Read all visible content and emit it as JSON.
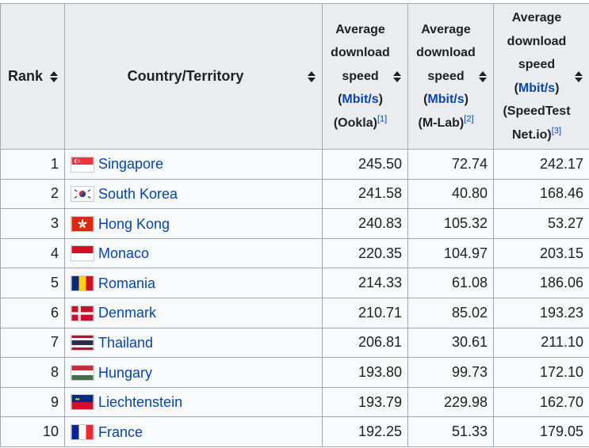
{
  "headers": {
    "rank": "Rank",
    "country": "Country/Territory",
    "ookla": {
      "l1": "Average",
      "l2": "download",
      "l3": "speed",
      "l4": "(Mbit/s)",
      "l5": "(Ookla)",
      "ref": "[1]"
    },
    "mlab": {
      "l1": "Average",
      "l2": "download",
      "l3": "speed",
      "l4": "(Mbit/s)",
      "l5": "(M-Lab)",
      "ref": "[2]"
    },
    "speedtest": {
      "l1": "Average",
      "l2": "download",
      "l3": "speed",
      "l4": "(Mbit/s)",
      "l5": "(SpeedTest",
      "l6": "Net.io)",
      "ref": "[3]"
    },
    "unit_link": "Mbit/s"
  },
  "rows": [
    {
      "rank": "1",
      "country": "Singapore",
      "flag": "singapore-flag-icon",
      "ookla": "245.50",
      "mlab": "72.74",
      "speedtest": "242.17"
    },
    {
      "rank": "2",
      "country": "South Korea",
      "flag": "south-korea-flag-icon",
      "ookla": "241.58",
      "mlab": "40.80",
      "speedtest": "168.46"
    },
    {
      "rank": "3",
      "country": "Hong Kong",
      "flag": "hong-kong-flag-icon",
      "ookla": "240.83",
      "mlab": "105.32",
      "speedtest": "53.27"
    },
    {
      "rank": "4",
      "country": "Monaco",
      "flag": "monaco-flag-icon",
      "ookla": "220.35",
      "mlab": "104.97",
      "speedtest": "203.15"
    },
    {
      "rank": "5",
      "country": "Romania",
      "flag": "romania-flag-icon",
      "ookla": "214.33",
      "mlab": "61.08",
      "speedtest": "186.06"
    },
    {
      "rank": "6",
      "country": "Denmark",
      "flag": "denmark-flag-icon",
      "ookla": "210.71",
      "mlab": "85.02",
      "speedtest": "193.23"
    },
    {
      "rank": "7",
      "country": "Thailand",
      "flag": "thailand-flag-icon",
      "ookla": "206.81",
      "mlab": "30.61",
      "speedtest": "211.10"
    },
    {
      "rank": "8",
      "country": "Hungary",
      "flag": "hungary-flag-icon",
      "ookla": "193.80",
      "mlab": "99.73",
      "speedtest": "172.10"
    },
    {
      "rank": "9",
      "country": "Liechtenstein",
      "flag": "liechtenstein-flag-icon",
      "ookla": "193.79",
      "mlab": "229.98",
      "speedtest": "162.70"
    },
    {
      "rank": "10",
      "country": "France",
      "flag": "france-flag-icon",
      "ookla": "192.25",
      "mlab": "51.33",
      "speedtest": "179.05"
    }
  ],
  "colors": {
    "link": "#0645ad",
    "header_bg": "#eaecf0",
    "cell_bg": "#f8f9fa",
    "border": "#a2a9b1"
  }
}
